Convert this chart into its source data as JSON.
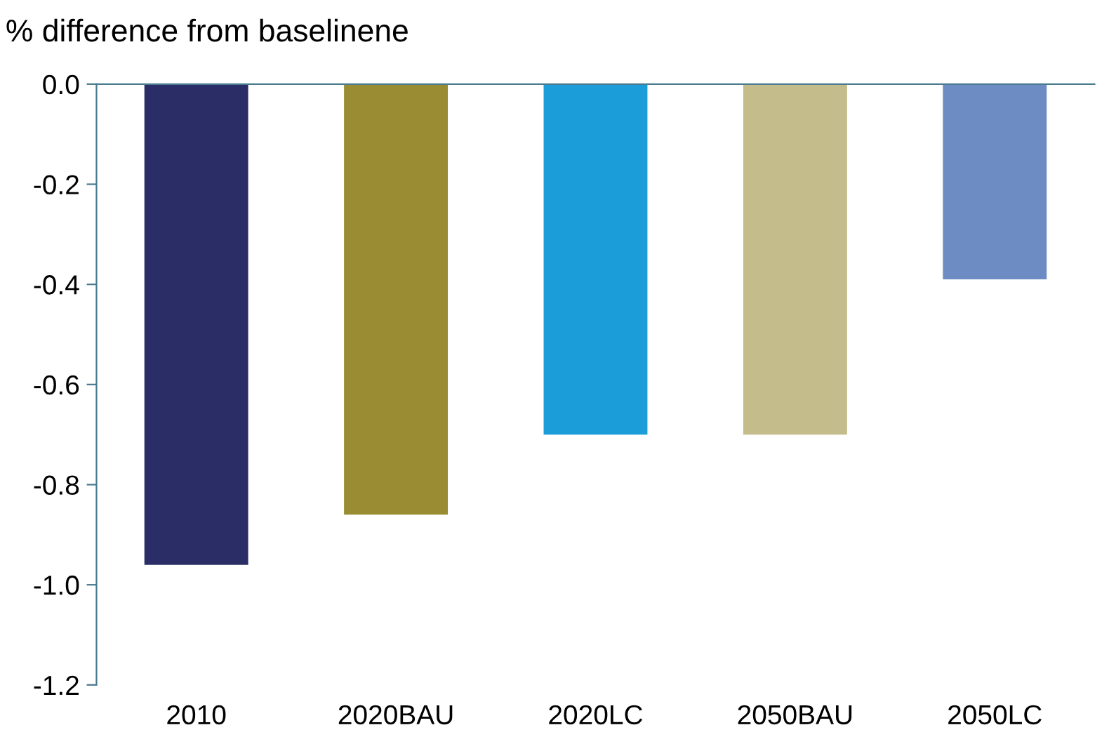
{
  "chart_data": {
    "type": "bar",
    "ylabel": "% difference from baselinene",
    "categories": [
      "2010",
      "2020BAU",
      "2020LC",
      "2050BAU",
      "2050LC"
    ],
    "values": [
      -0.96,
      -0.86,
      -0.7,
      -0.7,
      -0.39
    ],
    "colors": [
      "#2b2d66",
      "#9a8c32",
      "#1b9dd9",
      "#c4bc8a",
      "#6e8cc4"
    ],
    "ylim": [
      -1.2,
      0.0
    ],
    "yticks": [
      {
        "value": 0.0,
        "label": "0.0"
      },
      {
        "value": -0.2,
        "label": "-0.2"
      },
      {
        "value": -0.4,
        "label": "-0.4"
      },
      {
        "value": -0.6,
        "label": "-0.6"
      },
      {
        "value": -0.8,
        "label": "-0.8"
      },
      {
        "value": -1.0,
        "label": "-1.0"
      },
      {
        "value": -1.2,
        "label": "-1.2"
      }
    ],
    "grid": false,
    "legend": false
  }
}
